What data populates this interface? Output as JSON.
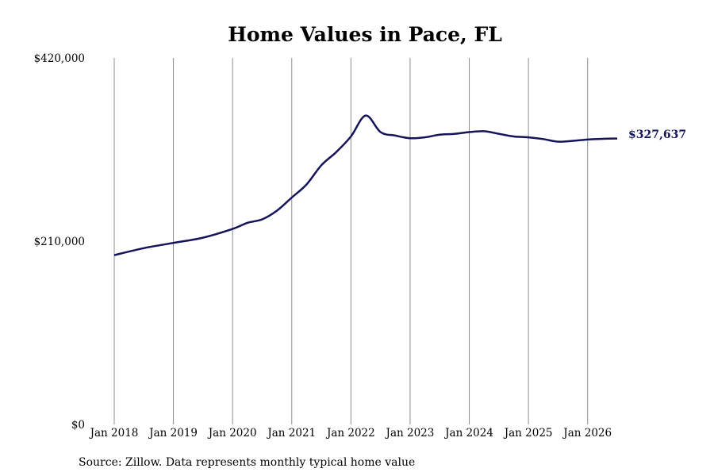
{
  "chart_data": {
    "type": "line",
    "title": "Home Values in Pace, FL",
    "source": "Source: Zillow. Data represents monthly typical home value",
    "xlabel": "",
    "ylabel": "",
    "ylim": [
      0,
      420000
    ],
    "yticks": [
      {
        "value": 0,
        "label": "$0"
      },
      {
        "value": 210000,
        "label": "$210,000"
      },
      {
        "value": 420000,
        "label": "$420,000"
      }
    ],
    "xticks": [
      {
        "value": 2018,
        "label": "Jan 2018"
      },
      {
        "value": 2019,
        "label": "Jan 2019"
      },
      {
        "value": 2020,
        "label": "Jan 2020"
      },
      {
        "value": 2021,
        "label": "Jan 2021"
      },
      {
        "value": 2022,
        "label": "Jan 2022"
      },
      {
        "value": 2023,
        "label": "Jan 2023"
      },
      {
        "value": 2024,
        "label": "Jan 2024"
      },
      {
        "value": 2025,
        "label": "Jan 2025"
      },
      {
        "value": 2026,
        "label": "Jan 2026"
      }
    ],
    "grid": {
      "vertical": true,
      "horizontal": false
    },
    "series": [
      {
        "color": "#14145a",
        "end_label": "$327,637",
        "x": [
          2018.0,
          2018.5,
          2019.0,
          2019.5,
          2020.0,
          2020.25,
          2020.5,
          2020.75,
          2021.0,
          2021.25,
          2021.5,
          2021.75,
          2022.0,
          2022.25,
          2022.5,
          2022.75,
          2023.0,
          2023.25,
          2023.5,
          2023.75,
          2024.0,
          2024.25,
          2024.5,
          2024.75,
          2025.0,
          2025.25,
          2025.5,
          2025.75,
          2026.0,
          2026.25,
          2026.5
        ],
        "y": [
          194000,
          202000,
          208000,
          214000,
          224000,
          231000,
          235000,
          245000,
          260000,
          275000,
          297000,
          312000,
          330000,
          354000,
          335000,
          331000,
          328000,
          329000,
          332000,
          333000,
          335000,
          336000,
          333000,
          330000,
          329000,
          327000,
          324000,
          325000,
          326500,
          327300,
          327637
        ]
      }
    ]
  }
}
